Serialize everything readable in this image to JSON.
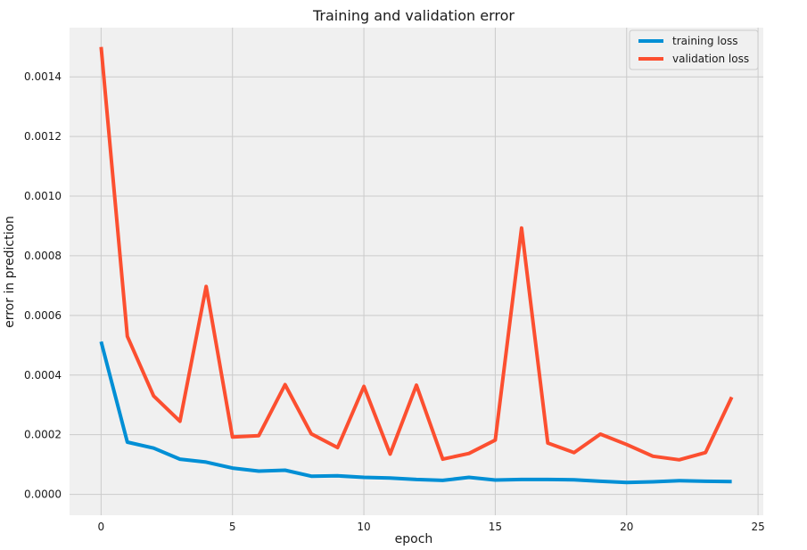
{
  "chart_data": {
    "type": "line",
    "title": "Training and validation error",
    "xlabel": "epoch",
    "ylabel": "error in prediction",
    "xlim": [
      -1.2,
      25.2
    ],
    "ylim": [
      -7e-05,
      0.001565
    ],
    "x_ticks": [
      0,
      5,
      10,
      15,
      20,
      25
    ],
    "x_tick_labels": [
      "0",
      "5",
      "10",
      "15",
      "20",
      "25"
    ],
    "y_ticks": [
      0,
      0.0002,
      0.0004,
      0.0006,
      0.0008,
      0.001,
      0.0012,
      0.0014
    ],
    "y_tick_labels": [
      "0.0000",
      "0.0002",
      "0.0004",
      "0.0006",
      "0.0008",
      "0.0010",
      "0.0012",
      "0.0014"
    ],
    "grid": true,
    "legend_position": "top-right",
    "x": [
      0,
      1,
      2,
      3,
      4,
      5,
      6,
      7,
      8,
      9,
      10,
      11,
      12,
      13,
      14,
      15,
      16,
      17,
      18,
      19,
      20,
      21,
      22,
      23,
      24
    ],
    "series": [
      {
        "name": "training loss",
        "color": "#008fd5",
        "values": [
          0.000512,
          0.000175,
          0.000155,
          0.000118,
          0.000108,
          8.8e-05,
          7.8e-05,
          8.1e-05,
          6.1e-05,
          6.2e-05,
          5.7e-05,
          5.5e-05,
          5e-05,
          4.7e-05,
          5.7e-05,
          4.8e-05,
          5e-05,
          5e-05,
          4.9e-05,
          4.4e-05,
          4e-05,
          4.2e-05,
          4.6e-05,
          4.4e-05,
          4.3e-05
        ]
      },
      {
        "name": "validation loss",
        "color": "#fc4f30",
        "values": [
          0.0015,
          0.00053,
          0.00033,
          0.000245,
          0.000697,
          0.000192,
          0.000197,
          0.000368,
          0.000203,
          0.000157,
          0.000362,
          0.000135,
          0.000366,
          0.000118,
          0.000137,
          0.000182,
          0.000893,
          0.000172,
          0.00014,
          0.000202,
          0.000167,
          0.000128,
          0.000116,
          0.00014,
          0.000326
        ]
      }
    ]
  }
}
